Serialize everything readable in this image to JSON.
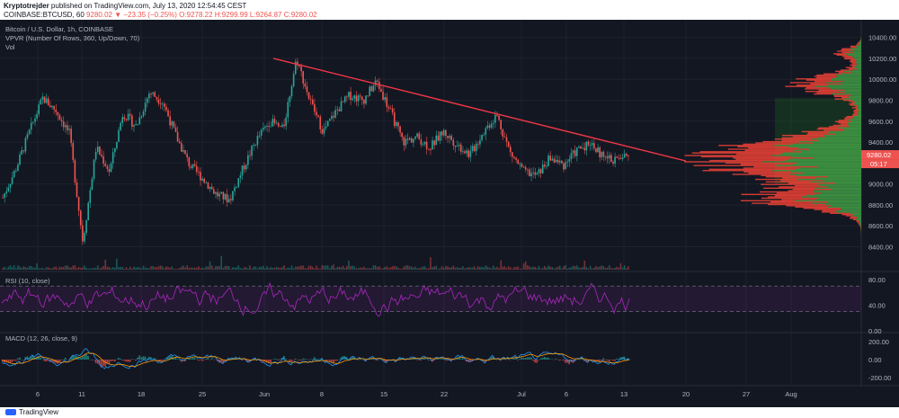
{
  "header": {
    "author": "Kryptotrejder",
    "published": "published on TradingView.com, July 13, 2020 12:54:45 CEST",
    "symbol_line": "COINBASE:BTCUSD, 60",
    "change": "9280.02 ▼ −23.35 (−0.25%)",
    "ohlc": "O:9278.22 H:9299.99 L:9264.87 C:9280.02"
  },
  "legends": {
    "title": "Bitcoin / U.S. Dollar, 1h, COINBASE",
    "vpvr": "VPVR (Number Of Rows, 360, Up/Down, 70)",
    "vol": "Vol",
    "rsi": "RSI (10, close)",
    "macd": "MACD (12, 26, close, 9)"
  },
  "footer": {
    "brand": "TradingView"
  },
  "colors": {
    "bg": "#131722",
    "up": "#26a69a",
    "down": "#ef5350",
    "trend": "#f23645",
    "rsi": "#9c27b0",
    "vp_up": "#43a047",
    "vp_down": "#f44336"
  },
  "chart_data": {
    "type": "candlestick",
    "symbol": "BTCUSD",
    "exchange": "COINBASE",
    "timeframe": "1h",
    "x_ticks": [
      "6",
      "11",
      "18",
      "25",
      "Jun",
      "8",
      "15",
      "22",
      "Jul",
      "6",
      "13",
      "20",
      "27",
      "Aug"
    ],
    "price_ticks": [
      8400,
      8600,
      8800,
      9000,
      9200,
      9400,
      9600,
      9800,
      10000,
      10200,
      10400
    ],
    "ylim": [
      8250,
      10500
    ],
    "last_price": "9280.02",
    "countdown": "05:17",
    "price_path": [
      [
        "6",
        8870
      ],
      [
        "6",
        9150
      ],
      [
        "6",
        9500
      ],
      [
        "6",
        9820
      ],
      [
        "11",
        9700
      ],
      [
        "11",
        9480
      ],
      [
        "11",
        8450
      ],
      [
        "11",
        9350
      ],
      [
        "11",
        9120
      ],
      [
        "11",
        9680
      ],
      [
        "18",
        9550
      ],
      [
        "18",
        9880
      ],
      [
        "18",
        9780
      ],
      [
        "18",
        9450
      ],
      [
        "18",
        9180
      ],
      [
        "18",
        9050
      ],
      [
        "25",
        8900
      ],
      [
        "25",
        8850
      ],
      [
        "25",
        9150
      ],
      [
        "25",
        9420
      ],
      [
        "25",
        9600
      ],
      [
        "25",
        9520
      ],
      [
        "Jun",
        10200
      ],
      [
        "Jun",
        9800
      ],
      [
        "Jun",
        9500
      ],
      [
        "Jun",
        9700
      ],
      [
        "Jun",
        9850
      ],
      [
        "8",
        9800
      ],
      [
        "8",
        9980
      ],
      [
        "8",
        9700
      ],
      [
        "8",
        9400
      ],
      [
        "15",
        9450
      ],
      [
        "15",
        9350
      ],
      [
        "15",
        9500
      ],
      [
        "15",
        9380
      ],
      [
        "15",
        9280
      ],
      [
        "22",
        9500
      ],
      [
        "22",
        9660
      ],
      [
        "22",
        9300
      ],
      [
        "22",
        9120
      ],
      [
        "Jul",
        9080
      ],
      [
        "Jul",
        9250
      ],
      [
        "Jul",
        9180
      ],
      [
        "6",
        9320
      ],
      [
        "6",
        9400
      ],
      [
        "6",
        9250
      ],
      [
        "13",
        9230
      ],
      [
        "13",
        9280
      ]
    ],
    "trendline": {
      "from": [
        "Jun",
        10200
      ],
      "to": [
        "20",
        9220
      ]
    },
    "volume_profile": {
      "poc_price": 9240,
      "value_area": [
        9000,
        9820
      ]
    },
    "rsi": {
      "name": "RSI (10, close)",
      "ticks": [
        0,
        40,
        80
      ],
      "bands": [
        30,
        70
      ],
      "ylim": [
        0,
        90
      ]
    },
    "macd": {
      "name": "MACD (12, 26, close, 9)",
      "ticks": [
        -200,
        0,
        200
      ],
      "ylim": [
        -280,
        280
      ]
    }
  }
}
